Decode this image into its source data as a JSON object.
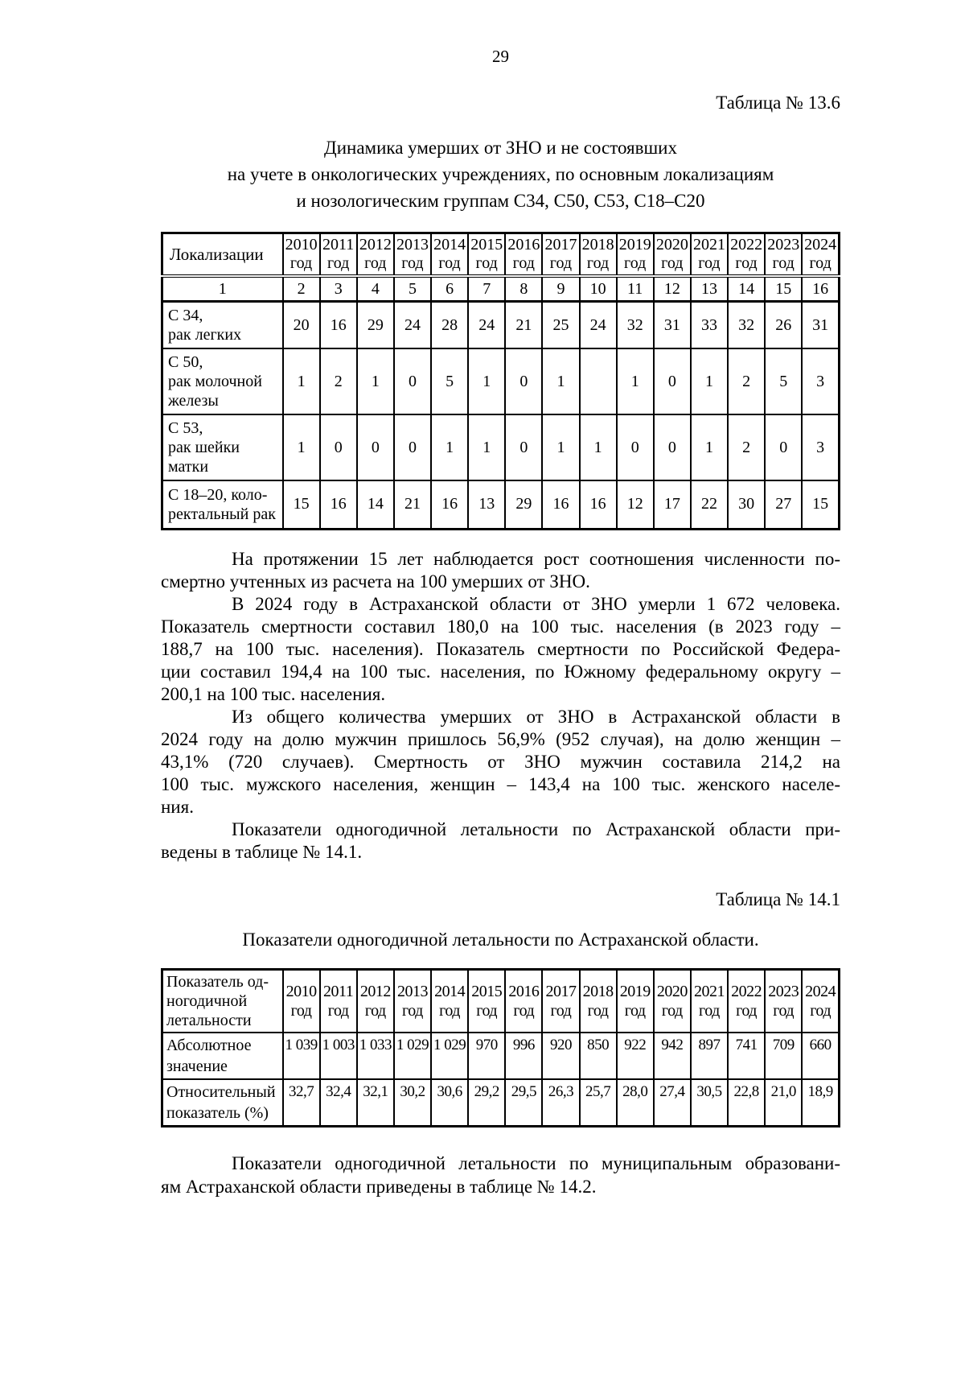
{
  "page_number": "29",
  "table1": {
    "caption": "Таблица № 13.6",
    "title_lines": [
      "Динамика умерших от ЗНО и не состоявших",
      "на учете в онкологических учреждениях, по основным локализациям",
      "и нозологическим группам С34, С50, С53, С18–С20"
    ],
    "header_col": "Локализации",
    "years": [
      "2010",
      "2011",
      "2012",
      "2013",
      "2014",
      "2015",
      "2016",
      "2017",
      "2018",
      "2019",
      "2020",
      "2021",
      "2022",
      "2023",
      "2024"
    ],
    "year_suffix": "год",
    "numbering": [
      "1",
      "2",
      "3",
      "4",
      "5",
      "6",
      "7",
      "8",
      "9",
      "10",
      "11",
      "12",
      "13",
      "14",
      "15",
      "16"
    ],
    "rows": [
      {
        "label_lines": [
          "С 34,",
          "рак легких"
        ],
        "values": [
          "20",
          "16",
          "29",
          "24",
          "28",
          "24",
          "21",
          "25",
          "24",
          "32",
          "31",
          "33",
          "32",
          "26",
          "31"
        ]
      },
      {
        "label_lines": [
          "С 50,",
          "рак молочной",
          "железы"
        ],
        "values": [
          "1",
          "2",
          "1",
          "0",
          "5",
          "1",
          "0",
          "1",
          "",
          "1",
          "0",
          "1",
          "2",
          "5",
          "3"
        ]
      },
      {
        "label_lines": [
          "С 53,",
          "рак шейки матки"
        ],
        "values": [
          "1",
          "0",
          "0",
          "0",
          "1",
          "1",
          "0",
          "1",
          "1",
          "0",
          "0",
          "1",
          "2",
          "0",
          "3"
        ]
      },
      {
        "label_lines": [
          "С 18–20, коло-",
          "ректальный рак"
        ],
        "values": [
          "15",
          "16",
          "14",
          "21",
          "16",
          "13",
          "29",
          "16",
          "16",
          "12",
          "17",
          "22",
          "30",
          "27",
          "15"
        ]
      }
    ]
  },
  "paragraphs": [
    {
      "lines": [
        "На протяжении 15 лет наблюдается рост соотношения численности по-",
        "смертно учтенных из расчета на 100 умерших от ЗНО."
      ]
    },
    {
      "lines": [
        "В 2024 году в Астраханской области от ЗНО умерли 1 672 человека.",
        "Показатель смертности составил 180,0 на 100 тыс. населения (в 2023 году –",
        "188,7 на 100 тыс. населения). Показатель смертности по Российской Федера-",
        "ции составил 194,4 на 100 тыс. населения, по Южному федеральному округу –",
        "200,1 на 100 тыс. населения."
      ]
    },
    {
      "lines": [
        "Из общего количества умерших от ЗНО в Астраханской области в",
        "2024 году на долю мужчин пришлось 56,9% (952 случая), на долю женщин –",
        "43,1% (720 случаев). Смертность от ЗНО мужчин составила 214,2 на",
        "100 тыс. мужского населения, женщин – 143,4 на 100 тыс. женского населе-",
        "ния."
      ]
    },
    {
      "lines": [
        "Показатели одногодичной летальности по Астраханской области при-",
        "ведены в таблице № 14.1."
      ]
    }
  ],
  "table2": {
    "caption": "Таблица № 14.1",
    "title": "Показатели одногодичной летальности по Астраханской области.",
    "header_col_lines": [
      "Показатель од-",
      "ногодичной",
      "летальности"
    ],
    "years": [
      "2010",
      "2011",
      "2012",
      "2013",
      "2014",
      "2015",
      "2016",
      "2017",
      "2018",
      "2019",
      "2020",
      "2021",
      "2022",
      "2023",
      "2024"
    ],
    "year_suffix": "год",
    "rows": [
      {
        "label_lines": [
          "Абсолютное",
          "значение"
        ],
        "values": [
          "1 039",
          "1 003",
          "1 033",
          "1 029",
          "1 029",
          "970",
          "996",
          "920",
          "850",
          "922",
          "942",
          "897",
          "741",
          "709",
          "660"
        ]
      },
      {
        "label_lines": [
          "Относительный",
          "показатель (%)"
        ],
        "values": [
          "32,7",
          "32,4",
          "32,1",
          "30,2",
          "30,6",
          "29,2",
          "29,5",
          "26,3",
          "25,7",
          "28,0",
          "27,4",
          "30,5",
          "22,8",
          "21,0",
          "18,9"
        ]
      }
    ]
  },
  "closing_paragraph": {
    "lines": [
      "Показатели одногодичной летальности по муниципальным образовани-",
      "ям Астраханской области приведены в таблице № 14.2."
    ]
  }
}
